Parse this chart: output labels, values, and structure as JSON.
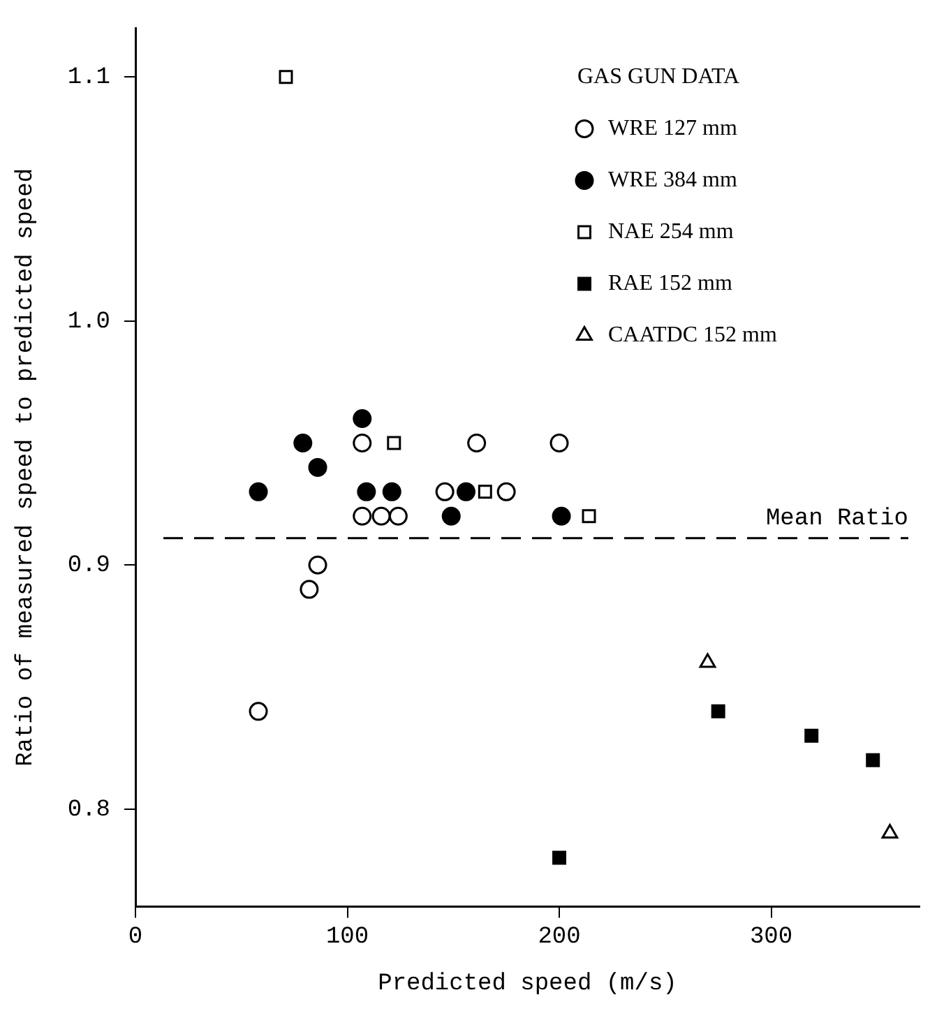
{
  "chart_data": {
    "type": "scatter",
    "xlabel": "Predicted speed (m/s)",
    "ylabel": "Ratio of measured speed to predicted speed",
    "legend_title": "GAS GUN DATA",
    "legend": "top right",
    "xlim": [
      0,
      370
    ],
    "xticks": [
      0,
      100,
      200,
      300
    ],
    "ylim": [
      0.76,
      1.12
    ],
    "yticks": [
      {
        "value": 0.8,
        "label": "0.8"
      },
      {
        "value": 0.9,
        "label": "0.9"
      },
      {
        "value": 1.0,
        "label": "1.0"
      },
      {
        "value": 1.1,
        "label": "1.1"
      }
    ],
    "grid": false,
    "ref_lines": [
      {
        "axis": "y",
        "value": 0.911,
        "label": "Mean Ratio",
        "line_style": "dashed",
        "color": "#000000"
      }
    ],
    "series": [
      {
        "name": "WRE 127 mm",
        "color": "#ffffff",
        "marker": "circle",
        "x": [
          107,
          161,
          200,
          146,
          175,
          107,
          116,
          124,
          86,
          82,
          58
        ],
        "values": [
          0.95,
          0.95,
          0.95,
          0.93,
          0.93,
          0.92,
          0.92,
          0.92,
          0.9,
          0.89,
          0.84
        ]
      },
      {
        "name": "WRE 384 mm",
        "color": "#000000",
        "marker": "circle",
        "x": [
          107,
          79,
          86,
          58,
          109,
          121,
          156,
          149,
          201
        ],
        "values": [
          0.96,
          0.95,
          0.94,
          0.93,
          0.93,
          0.93,
          0.93,
          0.92,
          0.92
        ]
      },
      {
        "name": "NAE 254 mm",
        "color": "#ffffff",
        "marker": "square",
        "x": [
          71,
          122,
          165,
          214
        ],
        "values": [
          1.1,
          0.95,
          0.93,
          0.92
        ]
      },
      {
        "name": "RAE 152 mm",
        "color": "#000000",
        "marker": "square",
        "x": [
          200,
          275,
          319,
          348
        ],
        "values": [
          0.78,
          0.84,
          0.83,
          0.82
        ]
      },
      {
        "name": "CAATDC 152 mm",
        "color": "#ffffff",
        "marker": "triangle",
        "x": [
          270,
          356
        ],
        "values": [
          0.86,
          0.79
        ]
      }
    ]
  }
}
